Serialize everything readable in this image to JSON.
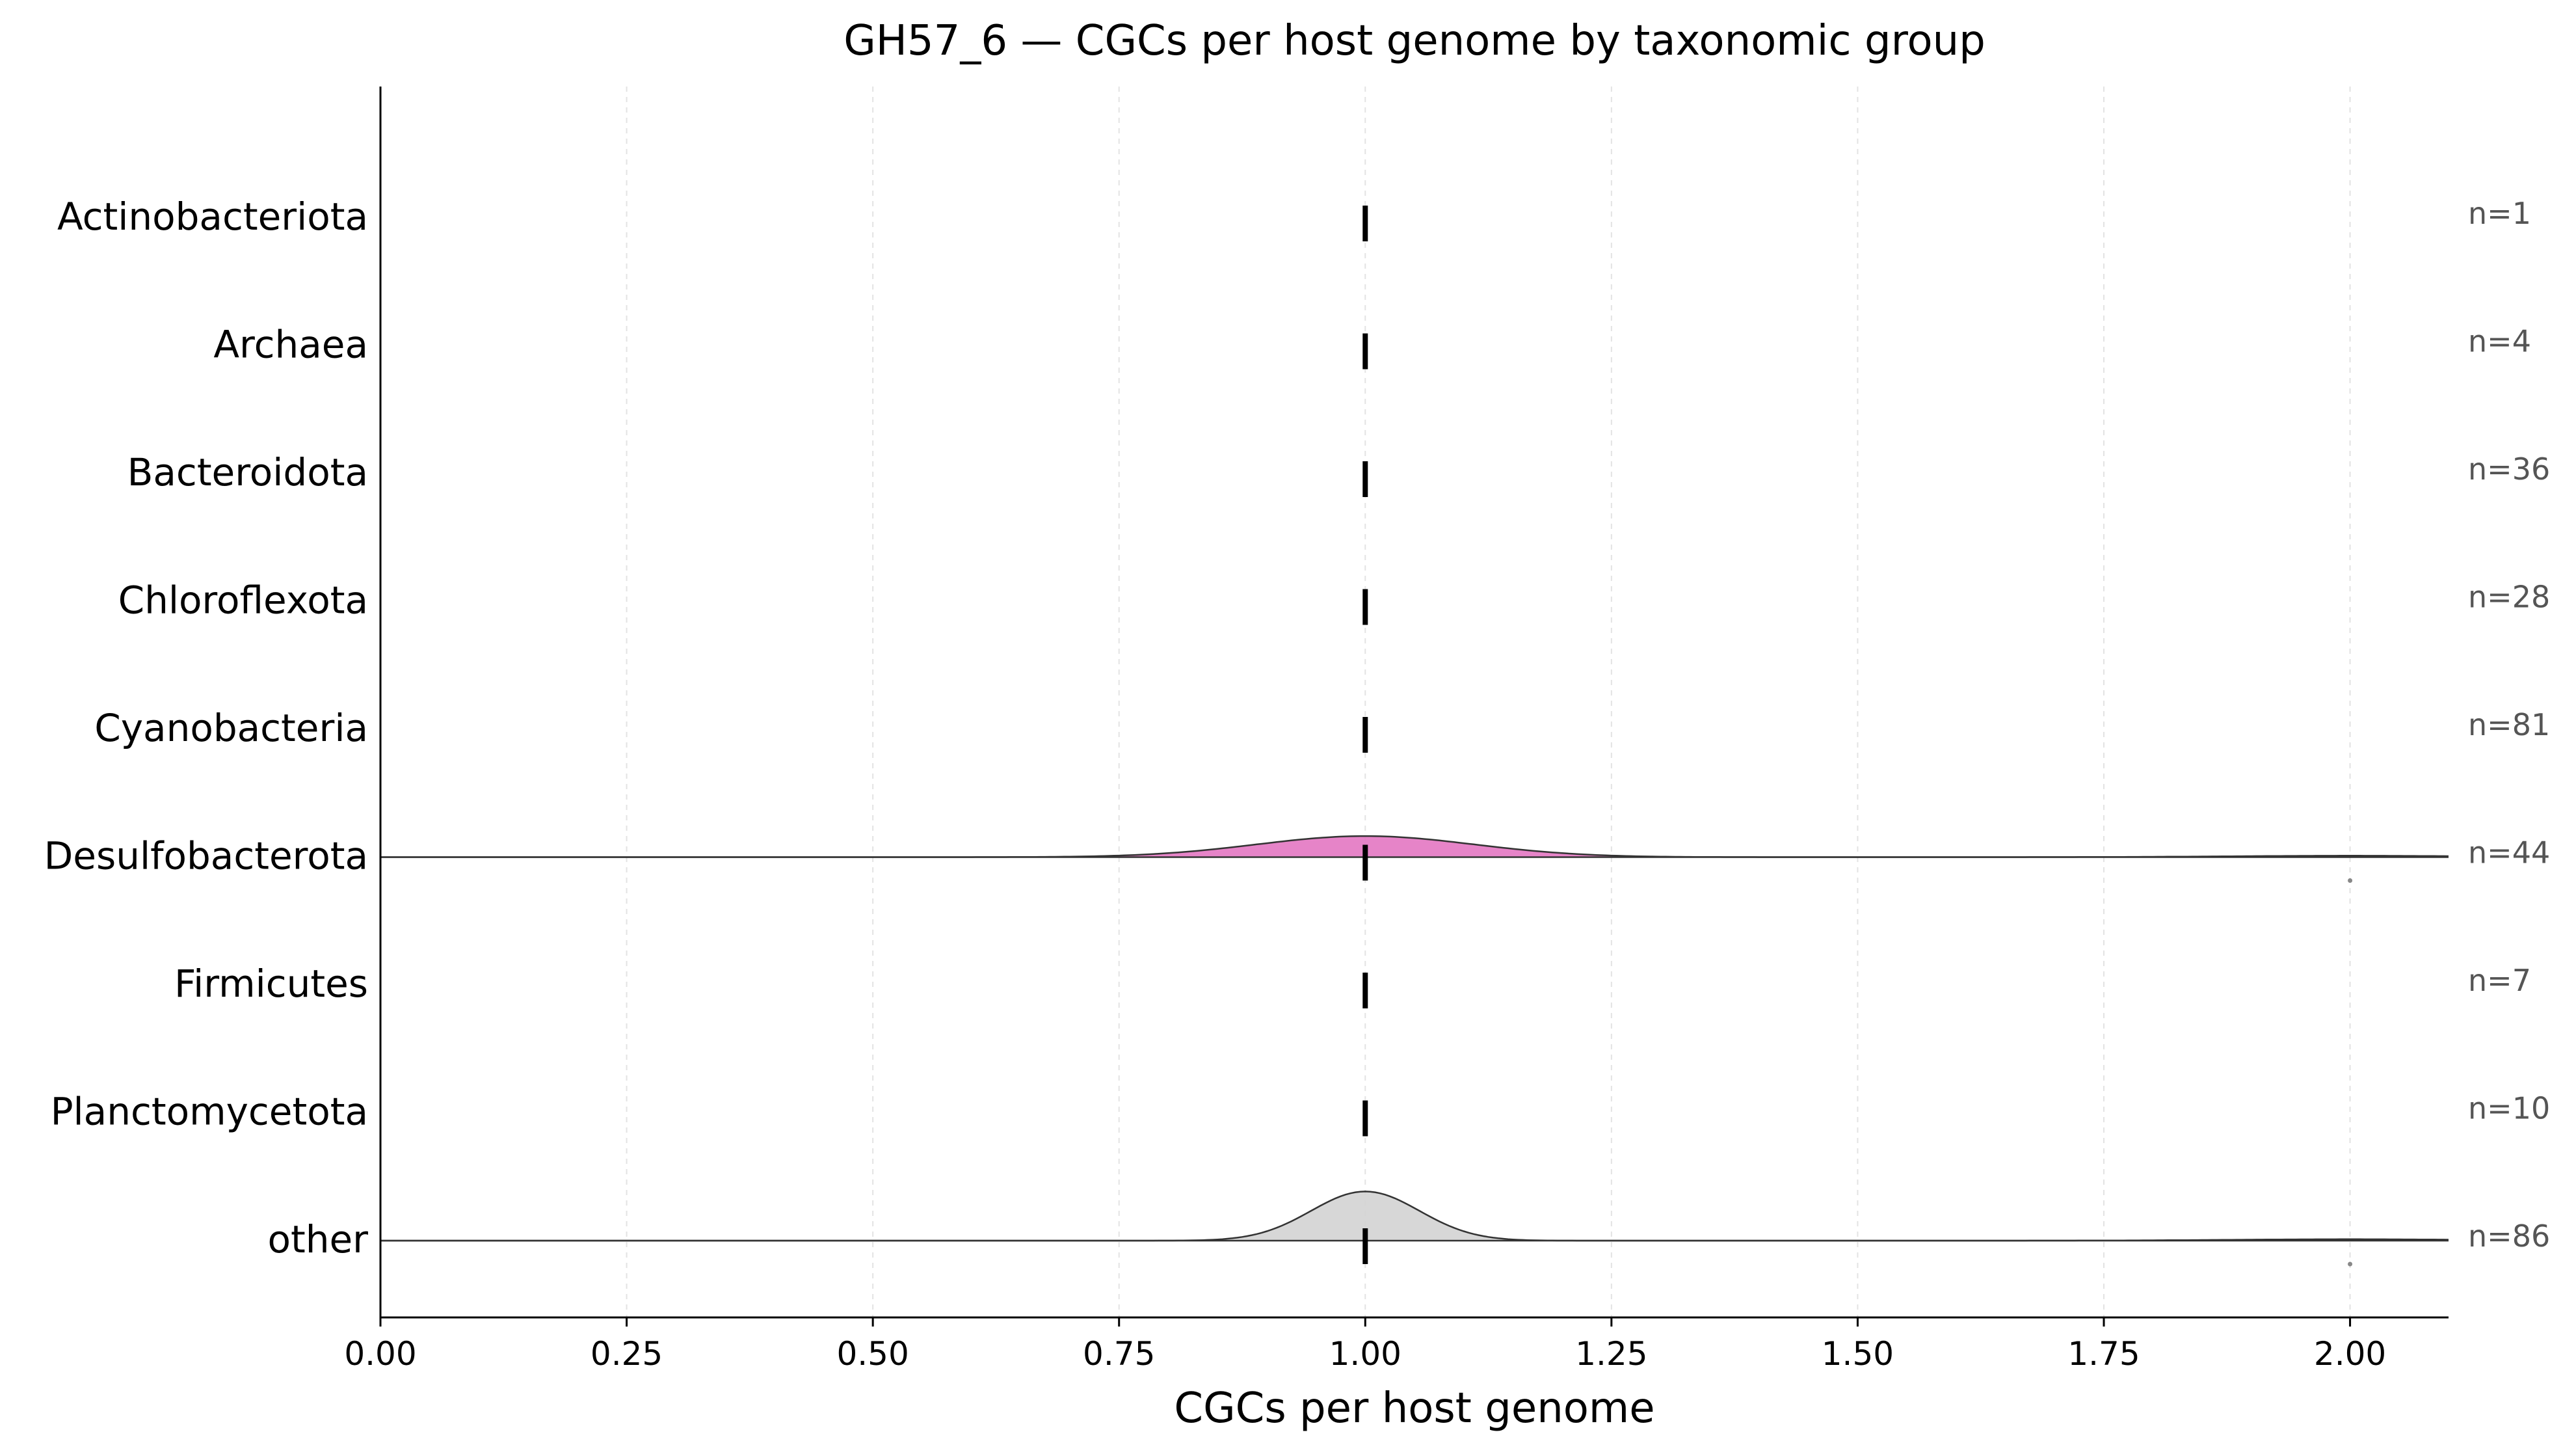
{
  "chart_data": {
    "type": "ridgeline",
    "title": "GH57_6 — CGCs per host genome by taxonomic group",
    "xlabel": "CGCs per host genome",
    "ylabel": "",
    "xlim": [
      0.0,
      2.1
    ],
    "xticks": [
      0.0,
      0.25,
      0.5,
      0.75,
      1.0,
      1.25,
      1.5,
      1.75,
      2.0
    ],
    "xtick_labels": [
      "0.00",
      "0.25",
      "0.50",
      "0.75",
      "1.00",
      "1.25",
      "1.50",
      "1.75",
      "2.00"
    ],
    "grid": "vertical dashed",
    "groups": [
      {
        "name": "Actinobacteriota",
        "n_label": "n=1",
        "median": 1.0,
        "density": null,
        "outliers": []
      },
      {
        "name": "Archaea",
        "n_label": "n=4",
        "median": 1.0,
        "density": null,
        "outliers": []
      },
      {
        "name": "Bacteroidota",
        "n_label": "n=36",
        "median": 1.0,
        "density": null,
        "outliers": []
      },
      {
        "name": "Chloroflexota",
        "n_label": "n=28",
        "median": 1.0,
        "density": null,
        "outliers": []
      },
      {
        "name": "Cyanobacteria",
        "n_label": "n=81",
        "median": 1.0,
        "density": null,
        "outliers": []
      },
      {
        "name": "Desulfobacterota",
        "n_label": "n=44",
        "median": 1.0,
        "density": {
          "center": 1.0,
          "sd": 0.11,
          "peak_height": 0.18,
          "secondary_center": 2.0,
          "secondary_sd": 0.12,
          "secondary_height": 0.012
        },
        "color": "#e377c2",
        "outliers": [
          2.0
        ]
      },
      {
        "name": "Firmicutes",
        "n_label": "n=7",
        "median": 1.0,
        "density": null,
        "outliers": []
      },
      {
        "name": "Planctomycetota",
        "n_label": "n=10",
        "median": 1.0,
        "density": null,
        "outliers": []
      },
      {
        "name": "other",
        "n_label": "n=86",
        "median": 1.0,
        "density": {
          "center": 1.0,
          "sd": 0.055,
          "peak_height": 0.42,
          "secondary_center": 2.0,
          "secondary_sd": 0.12,
          "secondary_height": 0.012
        },
        "color": "#d3d3d3",
        "outliers": [
          2.0
        ]
      }
    ]
  }
}
